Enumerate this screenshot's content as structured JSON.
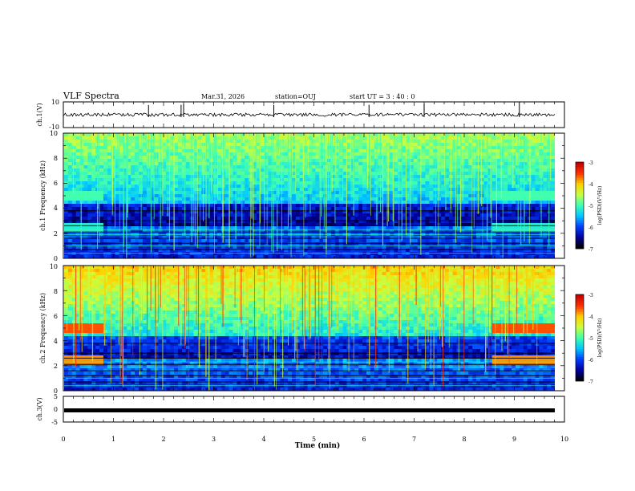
{
  "header": {
    "title": "VLF Spectra",
    "date": "Mar.31, 2026",
    "station": "station=OUJ",
    "start": "start UT =  3 : 40 : 0"
  },
  "chart_data": [
    {
      "type": "line",
      "title": "ch.1 waveform",
      "ylabel": "ch.1(V)",
      "ylim": [
        -10,
        10
      ],
      "yticks": [
        "10",
        "-10"
      ],
      "xlim": [
        0,
        10
      ],
      "baseline": 0,
      "spikes_min": [
        1.7,
        2.35,
        2.4,
        4.2,
        6.1,
        7.2,
        9.1
      ]
    },
    {
      "type": "heatmap",
      "title": "ch.1 spectrogram",
      "ylabel": "ch.1 Frequency (kHz)",
      "ylim": [
        0,
        10
      ],
      "yticks": [
        "0",
        "2",
        "4",
        "6",
        "8",
        "10"
      ],
      "xlim": [
        0,
        10
      ],
      "colorbar": {
        "label": "log(PSD)(V²/Hz)",
        "range": [
          -7,
          -3
        ],
        "ticks": [
          "-3",
          "-4",
          "-5",
          "-6",
          "-7"
        ]
      },
      "bands_khz": [
        5,
        2.5
      ]
    },
    {
      "type": "heatmap",
      "title": "ch.2 spectrogram",
      "ylabel": "ch.2 Frequency (kHz)",
      "ylim": [
        0,
        10
      ],
      "yticks": [
        "0",
        "2",
        "4",
        "6",
        "8",
        "10"
      ],
      "xlim": [
        0,
        10
      ],
      "colorbar": {
        "label": "log(PSD)(V²/Hz)",
        "range": [
          -7,
          -3
        ],
        "ticks": [
          "-3",
          "-4",
          "-5",
          "-6",
          "-7"
        ]
      },
      "bands_khz": [
        5,
        2.5
      ]
    },
    {
      "type": "line",
      "title": "ch.3 waveform",
      "ylabel": "ch.3(V)",
      "ylim": [
        -5,
        5
      ],
      "yticks": [
        "5",
        "0",
        "-5"
      ],
      "xlim": [
        0,
        10
      ],
      "baseline": 0
    }
  ],
  "xaxis": {
    "label": "Time (min)",
    "ticks": [
      "0",
      "1",
      "2",
      "3",
      "4",
      "5",
      "6",
      "7",
      "8",
      "9",
      "10"
    ]
  },
  "colors": {
    "cmap": [
      "#000000",
      "#0000a0",
      "#0040ff",
      "#00c8ff",
      "#40ffb0",
      "#c8ff40",
      "#ffd000",
      "#ff3000",
      "#c00000"
    ]
  }
}
